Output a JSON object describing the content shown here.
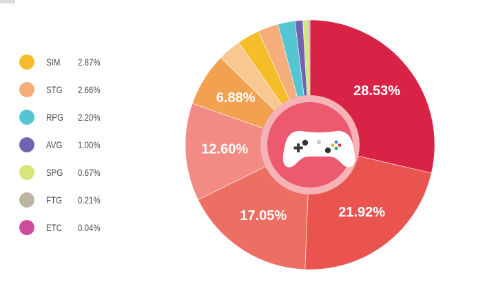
{
  "legend": [
    {
      "label": "SIM",
      "value": "2.87%",
      "color": "#f6bd2b"
    },
    {
      "label": "STG",
      "value": "2.66%",
      "color": "#f5ad7a"
    },
    {
      "label": "RPG",
      "value": "2.20%",
      "color": "#55c5d2"
    },
    {
      "label": "AVG",
      "value": "1.00%",
      "color": "#7263b1"
    },
    {
      "label": "SPG",
      "value": "0.67%",
      "color": "#d7e57b"
    },
    {
      "label": "FTG",
      "value": "0.21%",
      "color": "#bcb49e"
    },
    {
      "label": "ETC",
      "value": "0.04%",
      "color": "#cf4b9c"
    }
  ],
  "center_icon": "game-controller-icon",
  "chart_data": {
    "type": "pie",
    "style": "donut",
    "slices": [
      {
        "label": "",
        "value": 28.53,
        "display": "28.53%",
        "color": "#d82346"
      },
      {
        "label": "",
        "value": 21.92,
        "display": "21.92%",
        "color": "#e9544f"
      },
      {
        "label": "",
        "value": 17.05,
        "display": "17.05%",
        "color": "#ed6f63"
      },
      {
        "label": "",
        "value": 12.6,
        "display": "12.60%",
        "color": "#f28b84"
      },
      {
        "label": "",
        "value": 6.88,
        "display": "6.88%",
        "color": "#f2a150"
      },
      {
        "label": "",
        "value": 3.0,
        "display": "",
        "color": "#f8c890"
      },
      {
        "label": "SIM",
        "value": 2.87,
        "display": "",
        "color": "#f6bd2b"
      },
      {
        "label": "STG",
        "value": 2.66,
        "display": "",
        "color": "#f5ad7a"
      },
      {
        "label": "RPG",
        "value": 2.2,
        "display": "",
        "color": "#55c5d2"
      },
      {
        "label": "AVG",
        "value": 1.0,
        "display": "",
        "color": "#7263b1"
      },
      {
        "label": "SPG",
        "value": 0.67,
        "display": "",
        "color": "#d7e57b"
      },
      {
        "label": "FTG",
        "value": 0.21,
        "display": "",
        "color": "#bcb49e"
      },
      {
        "label": "ETC",
        "value": 0.04,
        "display": "",
        "color": "#cf4b9c"
      }
    ],
    "center_ring_color": "#f5b3b6",
    "center_fill_color": "#ed5a70"
  }
}
